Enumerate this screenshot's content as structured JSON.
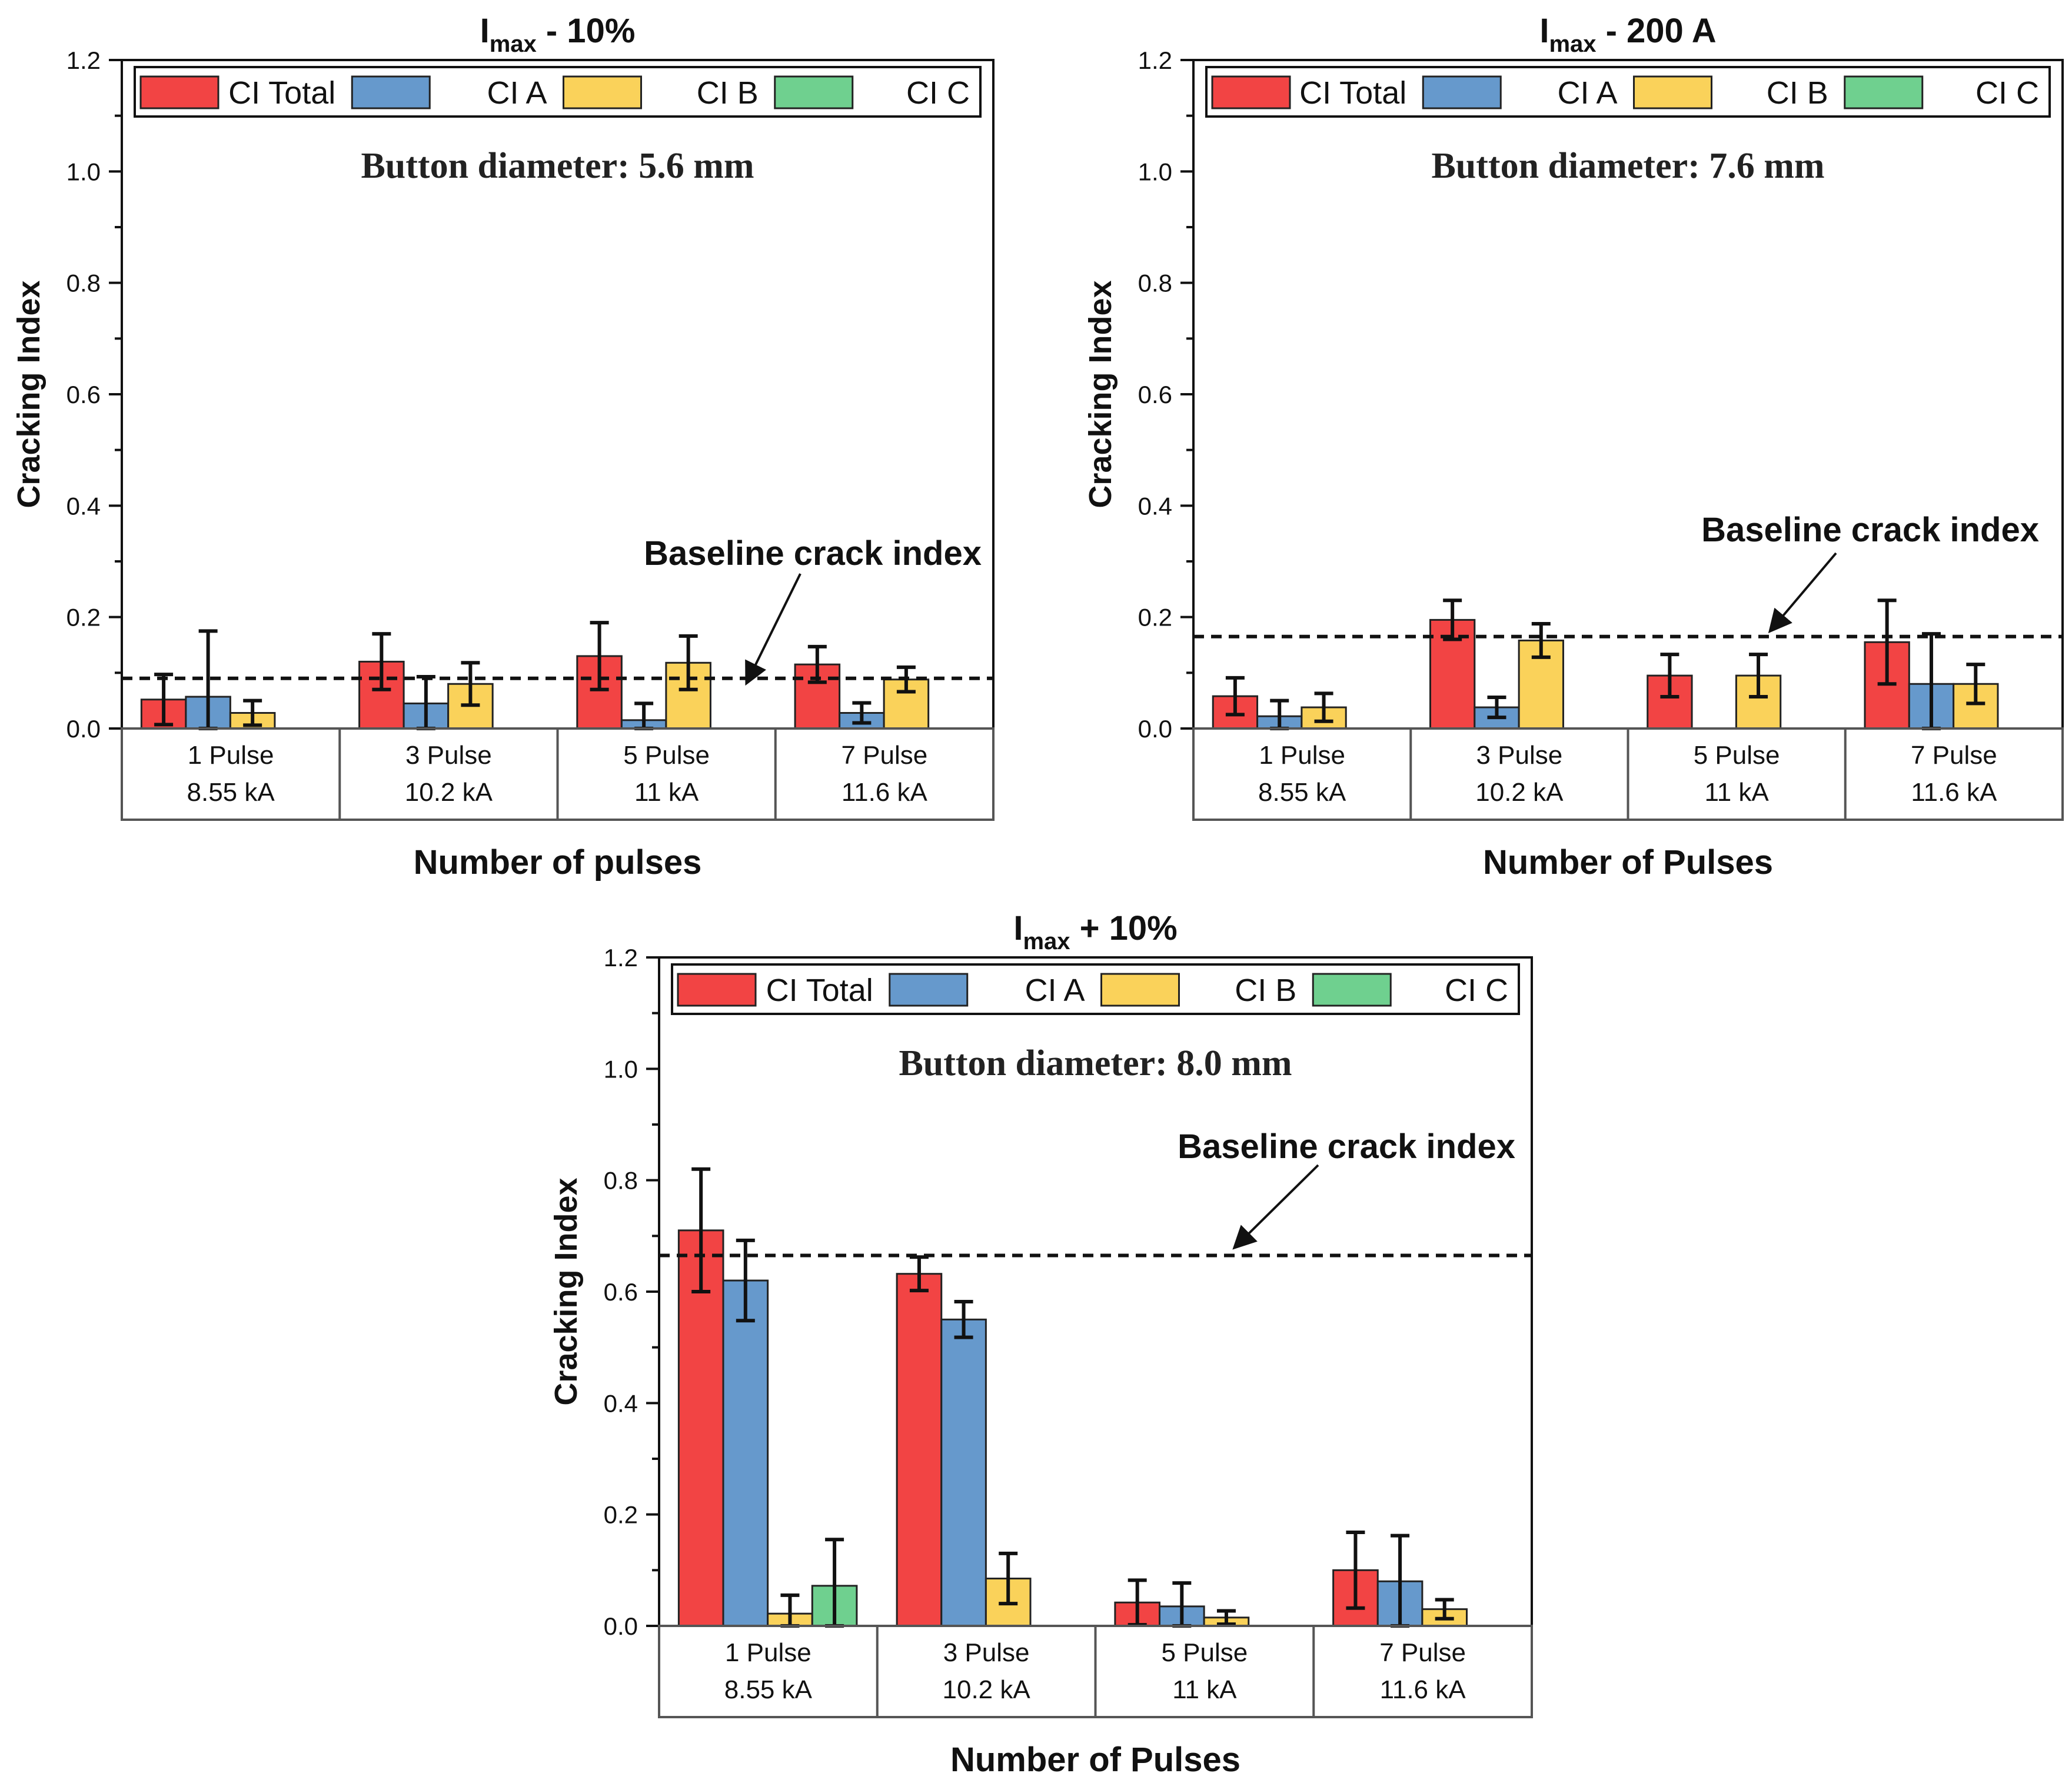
{
  "chart_data": [
    {
      "type": "bar",
      "title_main": "I",
      "title_sub": "max",
      "title_suffix": " - 10%",
      "annotation": "Button diameter: 5.6 mm",
      "baseline_label": "Baseline crack index",
      "baseline_value": 0.09,
      "xlabel": "Number of pulses",
      "ylabel": "Cracking Index",
      "ylim": [
        0,
        1.2
      ],
      "yticks": [
        "0.0",
        "0.2",
        "0.4",
        "0.6",
        "0.8",
        "1.0",
        "1.2"
      ],
      "categories": [
        {
          "line1": "1 Pulse",
          "line2": "8.55 kA"
        },
        {
          "line1": "3 Pulse",
          "line2": "10.2 kA"
        },
        {
          "line1": "5 Pulse",
          "line2": "11 kA"
        },
        {
          "line1": "7 Pulse",
          "line2": "11.6 kA"
        }
      ],
      "series": [
        {
          "name": "CI Total",
          "color": "#f24444",
          "values": [
            0.052,
            0.12,
            0.13,
            0.115
          ],
          "errors": [
            0.045,
            0.05,
            0.06,
            0.032
          ]
        },
        {
          "name": "CI A",
          "color": "#6699cc",
          "values": [
            0.057,
            0.045,
            0.015,
            0.028
          ],
          "errors": [
            0.118,
            0.048,
            0.03,
            0.018
          ]
        },
        {
          "name": "CI B",
          "color": "#fad25a",
          "values": [
            0.028,
            0.08,
            0.118,
            0.088
          ],
          "errors": [
            0.022,
            0.038,
            0.048,
            0.022
          ]
        },
        {
          "name": "CI C",
          "color": "#6fd08f",
          "values": [
            0,
            0,
            0,
            0
          ],
          "errors": [
            0,
            0,
            0,
            0
          ]
        }
      ]
    },
    {
      "type": "bar",
      "title_main": "I",
      "title_sub": "max",
      "title_suffix": " - 200 A",
      "annotation": "Button diameter: 7.6 mm",
      "baseline_label": "Baseline crack index",
      "baseline_value": 0.165,
      "xlabel": "Number of Pulses",
      "ylabel": "Cracking Index",
      "ylim": [
        0,
        1.2
      ],
      "yticks": [
        "0.0",
        "0.2",
        "0.4",
        "0.6",
        "0.8",
        "1.0",
        "1.2"
      ],
      "categories": [
        {
          "line1": "1 Pulse",
          "line2": "8.55 kA"
        },
        {
          "line1": "3 Pulse",
          "line2": "10.2 kA"
        },
        {
          "line1": "5 Pulse",
          "line2": "11 kA"
        },
        {
          "line1": "7 Pulse",
          "line2": "11.6 kA"
        }
      ],
      "series": [
        {
          "name": "CI Total",
          "color": "#f24444",
          "values": [
            0.058,
            0.195,
            0.095,
            0.155
          ],
          "errors": [
            0.033,
            0.035,
            0.038,
            0.075
          ]
        },
        {
          "name": "CI A",
          "color": "#6699cc",
          "values": [
            0.022,
            0.038,
            0,
            0.08
          ],
          "errors": [
            0.028,
            0.018,
            0,
            0.09
          ]
        },
        {
          "name": "CI B",
          "color": "#fad25a",
          "values": [
            0.038,
            0.158,
            0.095,
            0.08
          ],
          "errors": [
            0.025,
            0.03,
            0.038,
            0.035
          ]
        },
        {
          "name": "CI C",
          "color": "#6fd08f",
          "values": [
            0,
            0,
            0,
            0
          ],
          "errors": [
            0,
            0,
            0,
            0
          ]
        }
      ]
    },
    {
      "type": "bar",
      "title_main": "I",
      "title_sub": "max",
      "title_suffix": " + 10%",
      "annotation": "Button diameter: 8.0 mm",
      "baseline_label": "Baseline crack index",
      "baseline_value": 0.665,
      "xlabel": "Number of Pulses",
      "ylabel": "Cracking Index",
      "ylim": [
        0,
        1.2
      ],
      "yticks": [
        "0.0",
        "0.2",
        "0.4",
        "0.6",
        "0.8",
        "1.0",
        "1.2"
      ],
      "categories": [
        {
          "line1": "1 Pulse",
          "line2": "8.55 kA"
        },
        {
          "line1": "3 Pulse",
          "line2": "10.2 kA"
        },
        {
          "line1": "5 Pulse",
          "line2": "11 kA"
        },
        {
          "line1": "7 Pulse",
          "line2": "11.6 kA"
        }
      ],
      "series": [
        {
          "name": "CI Total",
          "color": "#f24444",
          "values": [
            0.71,
            0.632,
            0.042,
            0.1
          ],
          "errors": [
            0.11,
            0.03,
            0.04,
            0.068
          ]
        },
        {
          "name": "CI A",
          "color": "#6699cc",
          "values": [
            0.62,
            0.55,
            0.035,
            0.08
          ],
          "errors": [
            0.072,
            0.032,
            0.042,
            0.082
          ]
        },
        {
          "name": "CI B",
          "color": "#fad25a",
          "values": [
            0.022,
            0.085,
            0.015,
            0.03
          ],
          "errors": [
            0.033,
            0.045,
            0.012,
            0.017
          ]
        },
        {
          "name": "CI C",
          "color": "#6fd08f",
          "values": [
            0.072,
            0,
            0,
            0
          ],
          "errors": [
            0.083,
            0,
            0,
            0
          ]
        }
      ]
    }
  ]
}
